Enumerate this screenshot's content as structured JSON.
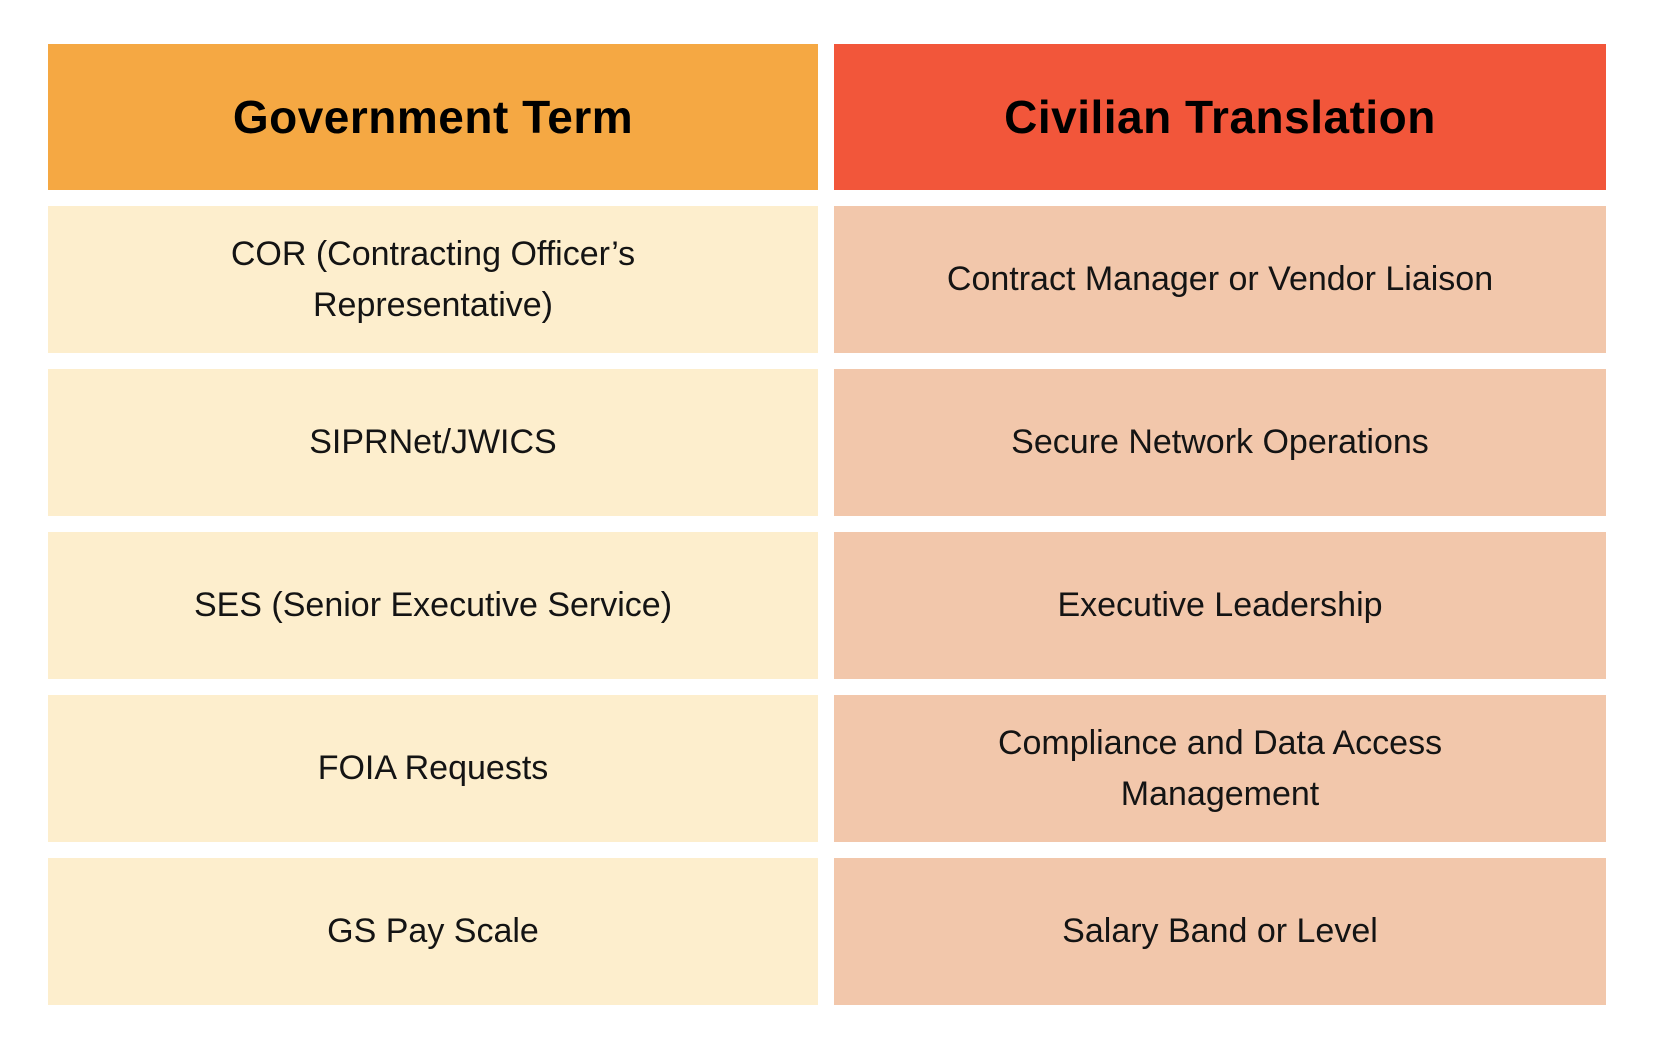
{
  "theme": {
    "page_bg": "#FFFFFF",
    "term_header_bg": "#F5A843",
    "translation_header_bg": "#F2563A",
    "term_cell_bg": "#FDEECD",
    "translation_cell_bg": "#F2C7AB",
    "header_text_color": "#000000",
    "cell_text_color": "#141414"
  },
  "table": {
    "headers": {
      "term": "Government Term",
      "translation": "Civilian Translation"
    },
    "rows": [
      {
        "term": "COR (Contracting Officer’s\nRepresentative)",
        "translation": "Contract Manager or Vendor Liaison"
      },
      {
        "term": "SIPRNet/JWICS",
        "translation": "Secure Network Operations"
      },
      {
        "term": "SES (Senior Executive Service)",
        "translation": "Executive Leadership"
      },
      {
        "term": "FOIA Requests",
        "translation": "Compliance and Data Access\nManagement"
      },
      {
        "term": "GS Pay Scale",
        "translation": "Salary Band or Level"
      }
    ]
  },
  "chart_data": {
    "type": "table",
    "title": "",
    "columns": [
      "Government Term",
      "Civilian Translation"
    ],
    "rows": [
      [
        "COR (Contracting Officer’s Representative)",
        "Contract Manager or Vendor Liaison"
      ],
      [
        "SIPRNet/JWICS",
        "Secure Network Operations"
      ],
      [
        "SES (Senior Executive Service)",
        "Executive Leadership"
      ],
      [
        "FOIA Requests",
        "Compliance and Data Access Management"
      ],
      [
        "GS Pay Scale",
        "Salary Band or Level"
      ]
    ]
  }
}
